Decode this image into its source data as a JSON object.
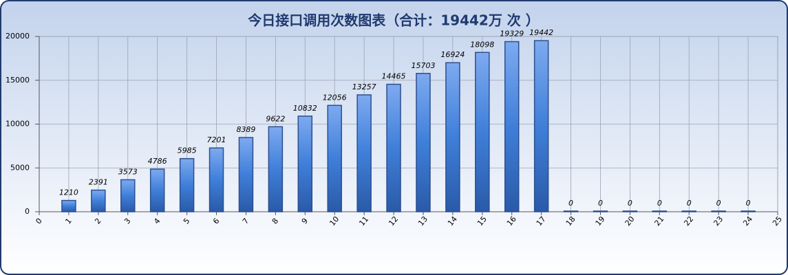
{
  "chart_data": {
    "type": "bar",
    "title": "今日接口调用次数图表（合计：19442万 次 ）",
    "x": [
      1,
      2,
      3,
      4,
      5,
      6,
      7,
      8,
      9,
      10,
      11,
      12,
      13,
      14,
      15,
      16,
      17,
      18,
      19,
      20,
      21,
      22,
      23,
      24
    ],
    "values": [
      1210,
      2391,
      3573,
      4786,
      5985,
      7201,
      8389,
      9622,
      10832,
      12056,
      13257,
      14465,
      15703,
      16924,
      18098,
      19329,
      19442,
      0,
      0,
      0,
      0,
      0,
      0,
      0
    ],
    "color": "#3f7fd9",
    "xlim": [
      0,
      25
    ],
    "xticks": [
      0,
      1,
      2,
      3,
      4,
      5,
      6,
      7,
      8,
      9,
      10,
      11,
      12,
      13,
      14,
      15,
      16,
      17,
      18,
      19,
      20,
      21,
      22,
      23,
      24,
      25
    ],
    "ylim": [
      0,
      20000
    ],
    "yticks": [
      0,
      5000,
      10000,
      15000,
      20000
    ],
    "grid": true
  }
}
